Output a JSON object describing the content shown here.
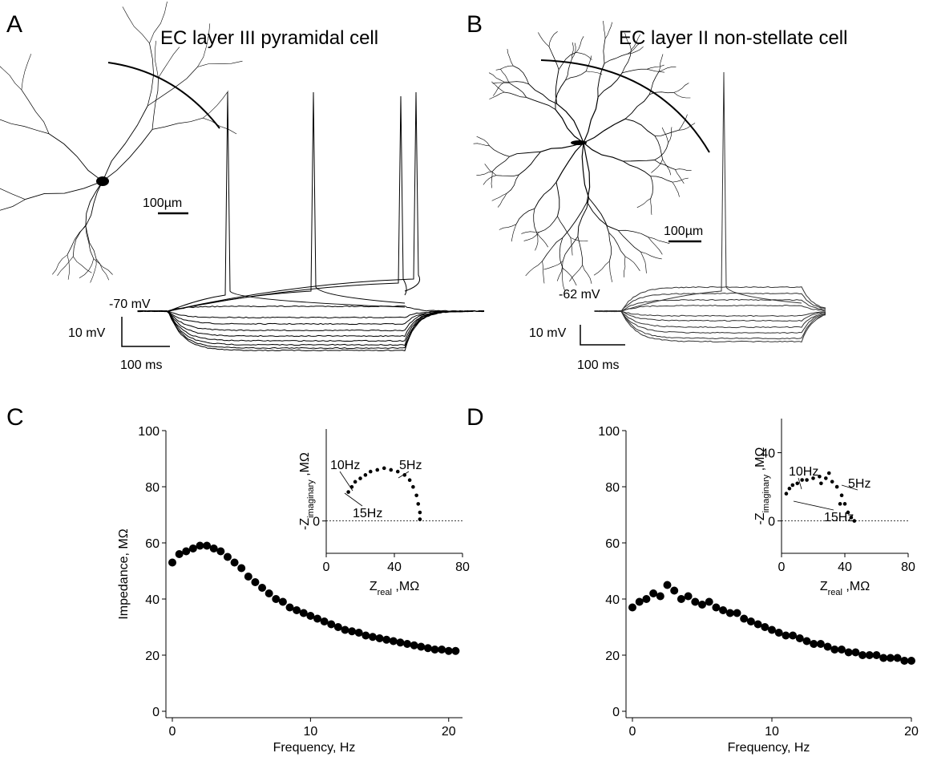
{
  "panels": [
    {
      "label": "A",
      "title": "EC layer III pyramidal cell",
      "scale_um": "100µm",
      "vm": "-70 mV",
      "scale_mv": "10 mV",
      "scale_ms": "100 ms"
    },
    {
      "label": "B",
      "title": "EC layer II non-stellate cell",
      "scale_um": "100µm",
      "vm": "-62 mV",
      "scale_mv": "10 mV",
      "scale_ms": "100 ms"
    },
    {
      "label": "C"
    },
    {
      "label": "D"
    }
  ],
  "chart_data": [
    {
      "type": "scatter",
      "xlabel": "Frequency, Hz",
      "ylabel": "Impedance, MΩ",
      "color": "#000000",
      "xlim": [
        0,
        21
      ],
      "ylim": [
        0,
        100
      ],
      "xticks": [
        0,
        10,
        20
      ],
      "yticks": [
        0,
        20,
        40,
        60,
        80,
        100
      ],
      "x": [
        0,
        0.5,
        1,
        1.5,
        2,
        2.5,
        3,
        3.5,
        4,
        4.5,
        5,
        5.5,
        6,
        6.5,
        7,
        7.5,
        8,
        8.5,
        9,
        9.5,
        10,
        10.5,
        11,
        11.5,
        12,
        12.5,
        13,
        13.5,
        14,
        14.5,
        15,
        15.5,
        16,
        16.5,
        17,
        17.5,
        18,
        18.5,
        19,
        19.5,
        20,
        20.5
      ],
      "values": [
        53,
        56,
        57,
        58,
        59,
        59,
        58,
        57,
        55,
        53,
        51,
        48,
        46,
        44,
        42,
        40,
        39,
        37,
        36,
        35,
        34,
        33,
        32,
        31,
        30,
        29,
        28.5,
        28,
        27,
        26.5,
        26,
        25.5,
        25,
        24.5,
        24,
        23.5,
        23,
        22.5,
        22,
        22,
        21.5,
        21.5
      ]
    },
    {
      "type": "scatter",
      "xlabel": [
        "Z",
        "real",
        " ,MΩ"
      ],
      "ylabel": [
        "-Z",
        "imaginary",
        " ,MΩ"
      ],
      "color": "#000000",
      "xlim": [
        0,
        80
      ],
      "ylim": [
        -19,
        54
      ],
      "xticks": [
        0,
        40,
        80
      ],
      "yticks": [
        0
      ],
      "reference_line": 0,
      "annotations": [
        "10Hz",
        "5Hz",
        "15Hz"
      ],
      "x": [
        13,
        15,
        17,
        20,
        23,
        26,
        30,
        34,
        38,
        42,
        46,
        49,
        51,
        53,
        54,
        55,
        55
      ],
      "values": [
        17,
        20,
        23,
        25,
        27,
        29,
        30,
        31,
        30,
        29,
        27,
        24,
        20,
        15,
        10,
        5,
        1
      ]
    },
    {
      "type": "scatter",
      "xlabel": "Frequency, Hz",
      "color": "#000000",
      "xlim": [
        0,
        20
      ],
      "ylim": [
        0,
        100
      ],
      "xticks": [
        0,
        10,
        20
      ],
      "yticks": [
        0,
        20,
        40,
        60,
        80,
        100
      ],
      "x": [
        0,
        0.5,
        1,
        1.5,
        2,
        2.5,
        3,
        3.5,
        4,
        4.5,
        5,
        5.5,
        6,
        6.5,
        7,
        7.5,
        8,
        8.5,
        9,
        9.5,
        10,
        10.5,
        11,
        11.5,
        12,
        12.5,
        13,
        13.5,
        14,
        14.5,
        15,
        15.5,
        16,
        16.5,
        17,
        17.5,
        18,
        18.5,
        19,
        19.5,
        20
      ],
      "values": [
        37,
        39,
        40,
        42,
        41,
        45,
        43,
        40,
        41,
        39,
        38,
        39,
        37,
        36,
        35,
        35,
        33,
        32,
        31,
        30,
        29,
        28,
        27,
        27,
        26,
        25,
        24,
        24,
        23,
        22,
        22,
        21,
        21,
        20,
        20,
        20,
        19,
        19,
        19,
        18,
        18
      ]
    },
    {
      "type": "scatter",
      "xlabel": [
        "Z",
        "real",
        " ,MΩ"
      ],
      "ylabel": [
        "-Z",
        "imaginary",
        " ,MΩ"
      ],
      "color": "#000000",
      "xlim": [
        0,
        80
      ],
      "ylim": [
        -19,
        60
      ],
      "xticks": [
        0,
        40,
        80
      ],
      "yticks": [
        0,
        40
      ],
      "reference_line": 0,
      "annotations": [
        "10Hz",
        "5Hz",
        "15Hz"
      ],
      "x": [
        3,
        5,
        7,
        10,
        13,
        16,
        20,
        24,
        28,
        32,
        35,
        38,
        40,
        42,
        44,
        46,
        37,
        30,
        25
      ],
      "values": [
        16,
        19,
        21,
        22,
        24,
        24,
        25,
        26,
        25,
        23,
        20,
        15,
        10,
        5,
        2,
        0,
        10,
        28,
        22
      ]
    }
  ]
}
